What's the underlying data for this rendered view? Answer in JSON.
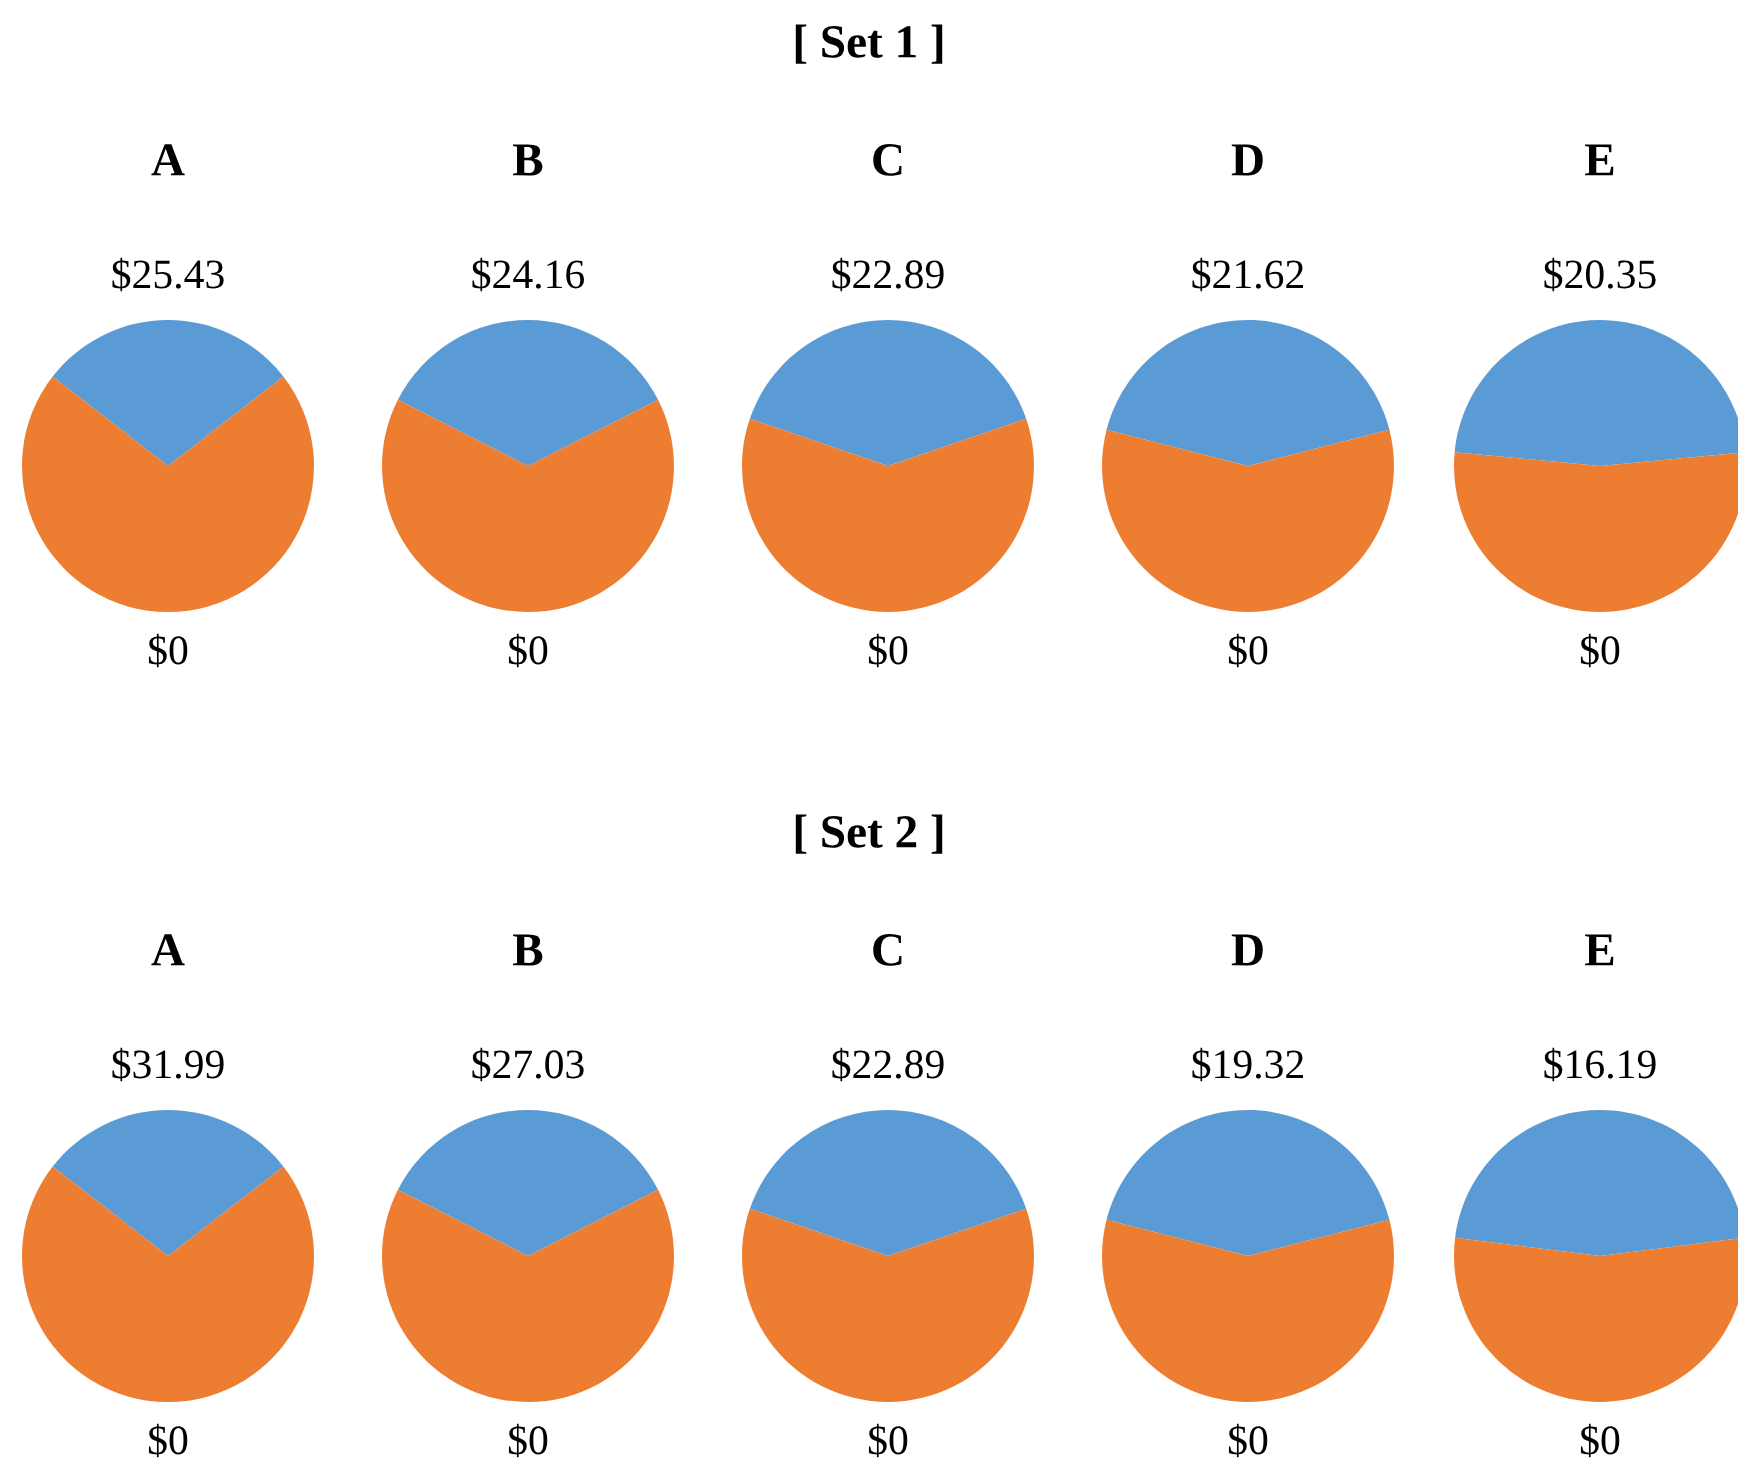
{
  "chart_data": [
    {
      "type": "pie",
      "title": "A",
      "annotations": [
        "[ Set 1 ]"
      ],
      "categories": [
        "$25.43",
        "$0"
      ],
      "values": [
        29,
        71
      ],
      "colors": [
        "#5b9bd5",
        "#ed7d31"
      ]
    },
    {
      "type": "pie",
      "title": "B",
      "categories": [
        "$24.16",
        "$0"
      ],
      "values": [
        35,
        65
      ],
      "colors": [
        "#5b9bd5",
        "#ed7d31"
      ]
    },
    {
      "type": "pie",
      "title": "C",
      "categories": [
        "$22.89",
        "$0"
      ],
      "values": [
        39.5,
        60.5
      ],
      "colors": [
        "#5b9bd5",
        "#ed7d31"
      ]
    },
    {
      "type": "pie",
      "title": "D",
      "categories": [
        "$21.62",
        "$0"
      ],
      "values": [
        42,
        58
      ],
      "colors": [
        "#5b9bd5",
        "#ed7d31"
      ]
    },
    {
      "type": "pie",
      "title": "E",
      "categories": [
        "$20.35",
        "$0"
      ],
      "values": [
        47,
        53
      ],
      "colors": [
        "#5b9bd5",
        "#ed7d31"
      ]
    },
    {
      "type": "pie",
      "title": "A",
      "annotations": [
        "[ Set 2 ]"
      ],
      "categories": [
        "$31.99",
        "$0"
      ],
      "values": [
        29,
        71
      ],
      "colors": [
        "#5b9bd5",
        "#ed7d31"
      ]
    },
    {
      "type": "pie",
      "title": "B",
      "categories": [
        "$27.03",
        "$0"
      ],
      "values": [
        35,
        65
      ],
      "colors": [
        "#5b9bd5",
        "#ed7d31"
      ]
    },
    {
      "type": "pie",
      "title": "C",
      "categories": [
        "$22.89",
        "$0"
      ],
      "values": [
        39.5,
        60.5
      ],
      "colors": [
        "#5b9bd5",
        "#ed7d31"
      ]
    },
    {
      "type": "pie",
      "title": "D",
      "categories": [
        "$19.32",
        "$0"
      ],
      "values": [
        42,
        58
      ],
      "colors": [
        "#5b9bd5",
        "#ed7d31"
      ]
    },
    {
      "type": "pie",
      "title": "E",
      "categories": [
        "$16.19",
        "$0"
      ],
      "values": [
        46,
        54
      ],
      "colors": [
        "#5b9bd5",
        "#ed7d31"
      ]
    }
  ]
}
